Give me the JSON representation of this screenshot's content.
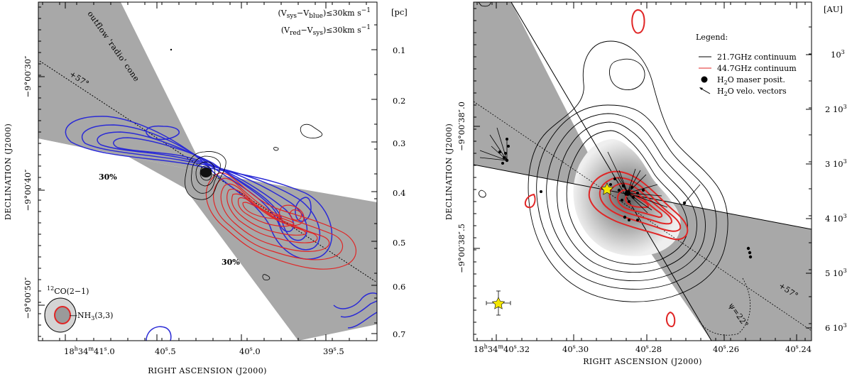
{
  "chart_data": [
    {
      "type": "contour",
      "title": "",
      "xlabel": "RIGHT ASCENSION (J2000)",
      "ylabel": "DECLINATION (J2000)",
      "right_axis_label": "[pc]",
      "x_ticks": [
        {
          "ra": "18h34m41s0",
          "label_parts": [
            "18",
            "h",
            "34",
            "m",
            "41",
            "s",
            ".0"
          ]
        },
        {
          "ra": "40s5",
          "label_parts": [
            "40",
            "s",
            ".5"
          ]
        },
        {
          "ra": "40s0",
          "label_parts": [
            "40",
            "s",
            ".0"
          ]
        },
        {
          "ra": "39s5",
          "label_parts": [
            "39",
            "s",
            ".5"
          ]
        }
      ],
      "y_ticks": [
        "−9°00′30″",
        "−9°00′40″",
        "−9°00′50″"
      ],
      "right_ticks": [
        "0.1",
        "0.2",
        "0.3",
        "0.4",
        "0.5",
        "0.6",
        "0.7"
      ],
      "cone_label": "outflow 'radio' cone",
      "pa_label": "+57°",
      "legend_blue": {
        "parts": [
          "(V",
          "sys",
          "−V",
          "blue",
          ")≤30km s",
          "−1"
        ]
      },
      "legend_red": {
        "parts": [
          "(V",
          "red",
          "−V",
          "sys",
          ")≤30km s",
          "−1"
        ]
      },
      "blue_percent_label": "30%",
      "red_percent_label": "30%",
      "beam_co_label": {
        "sup": "12",
        "text": "CO(2−1)"
      },
      "beam_nh3_label": {
        "text": "—NH",
        "sub": "3",
        "rest": "(3,3)"
      },
      "colors": {
        "blue": "#2a2ad6",
        "red": "#e02626",
        "cone": "#a8a8a8"
      }
    },
    {
      "type": "contour",
      "title": "",
      "xlabel": "RIGHT ASCENSION (J2000)",
      "ylabel": "DECLINATION (J2000)",
      "right_axis_label": "[AU]",
      "x_ticks": [
        {
          "label_parts": [
            "18",
            "h",
            "34",
            "m",
            "40",
            "s",
            ".32"
          ]
        },
        {
          "label_parts": [
            "40",
            "s",
            ".30"
          ]
        },
        {
          "label_parts": [
            "40",
            "s",
            ".28"
          ]
        },
        {
          "label_parts": [
            "40",
            "s",
            ".26"
          ]
        },
        {
          "label_parts": [
            "40",
            "s",
            ".24"
          ]
        }
      ],
      "y_ticks": [
        "−9°00′38″.0",
        "−9°00′38″.5"
      ],
      "right_ticks": [
        {
          "mant": "10",
          "exp": "3"
        },
        {
          "mant": "2 10",
          "exp": "3"
        },
        {
          "mant": "3 10",
          "exp": "3"
        },
        {
          "mant": "4 10",
          "exp": "3"
        },
        {
          "mant": "5 10",
          "exp": "3"
        },
        {
          "mant": "6 10",
          "exp": "3"
        }
      ],
      "legend_title": "Legend:",
      "legend_items": [
        {
          "text": "21.7GHz continuum"
        },
        {
          "text": "44.7GHz continuum"
        },
        {
          "pre": "H",
          "sub": "2",
          "post": "O maser posit."
        },
        {
          "pre": "H",
          "sub": "2",
          "post": "O velo. vectors"
        }
      ],
      "pa_label": "+57°",
      "opening_label": "ψ=22°",
      "colors": {
        "cont21": "#000000",
        "cont44": "#e02626",
        "cone": "#a8a8a8",
        "star": "#f3e600"
      }
    }
  ]
}
